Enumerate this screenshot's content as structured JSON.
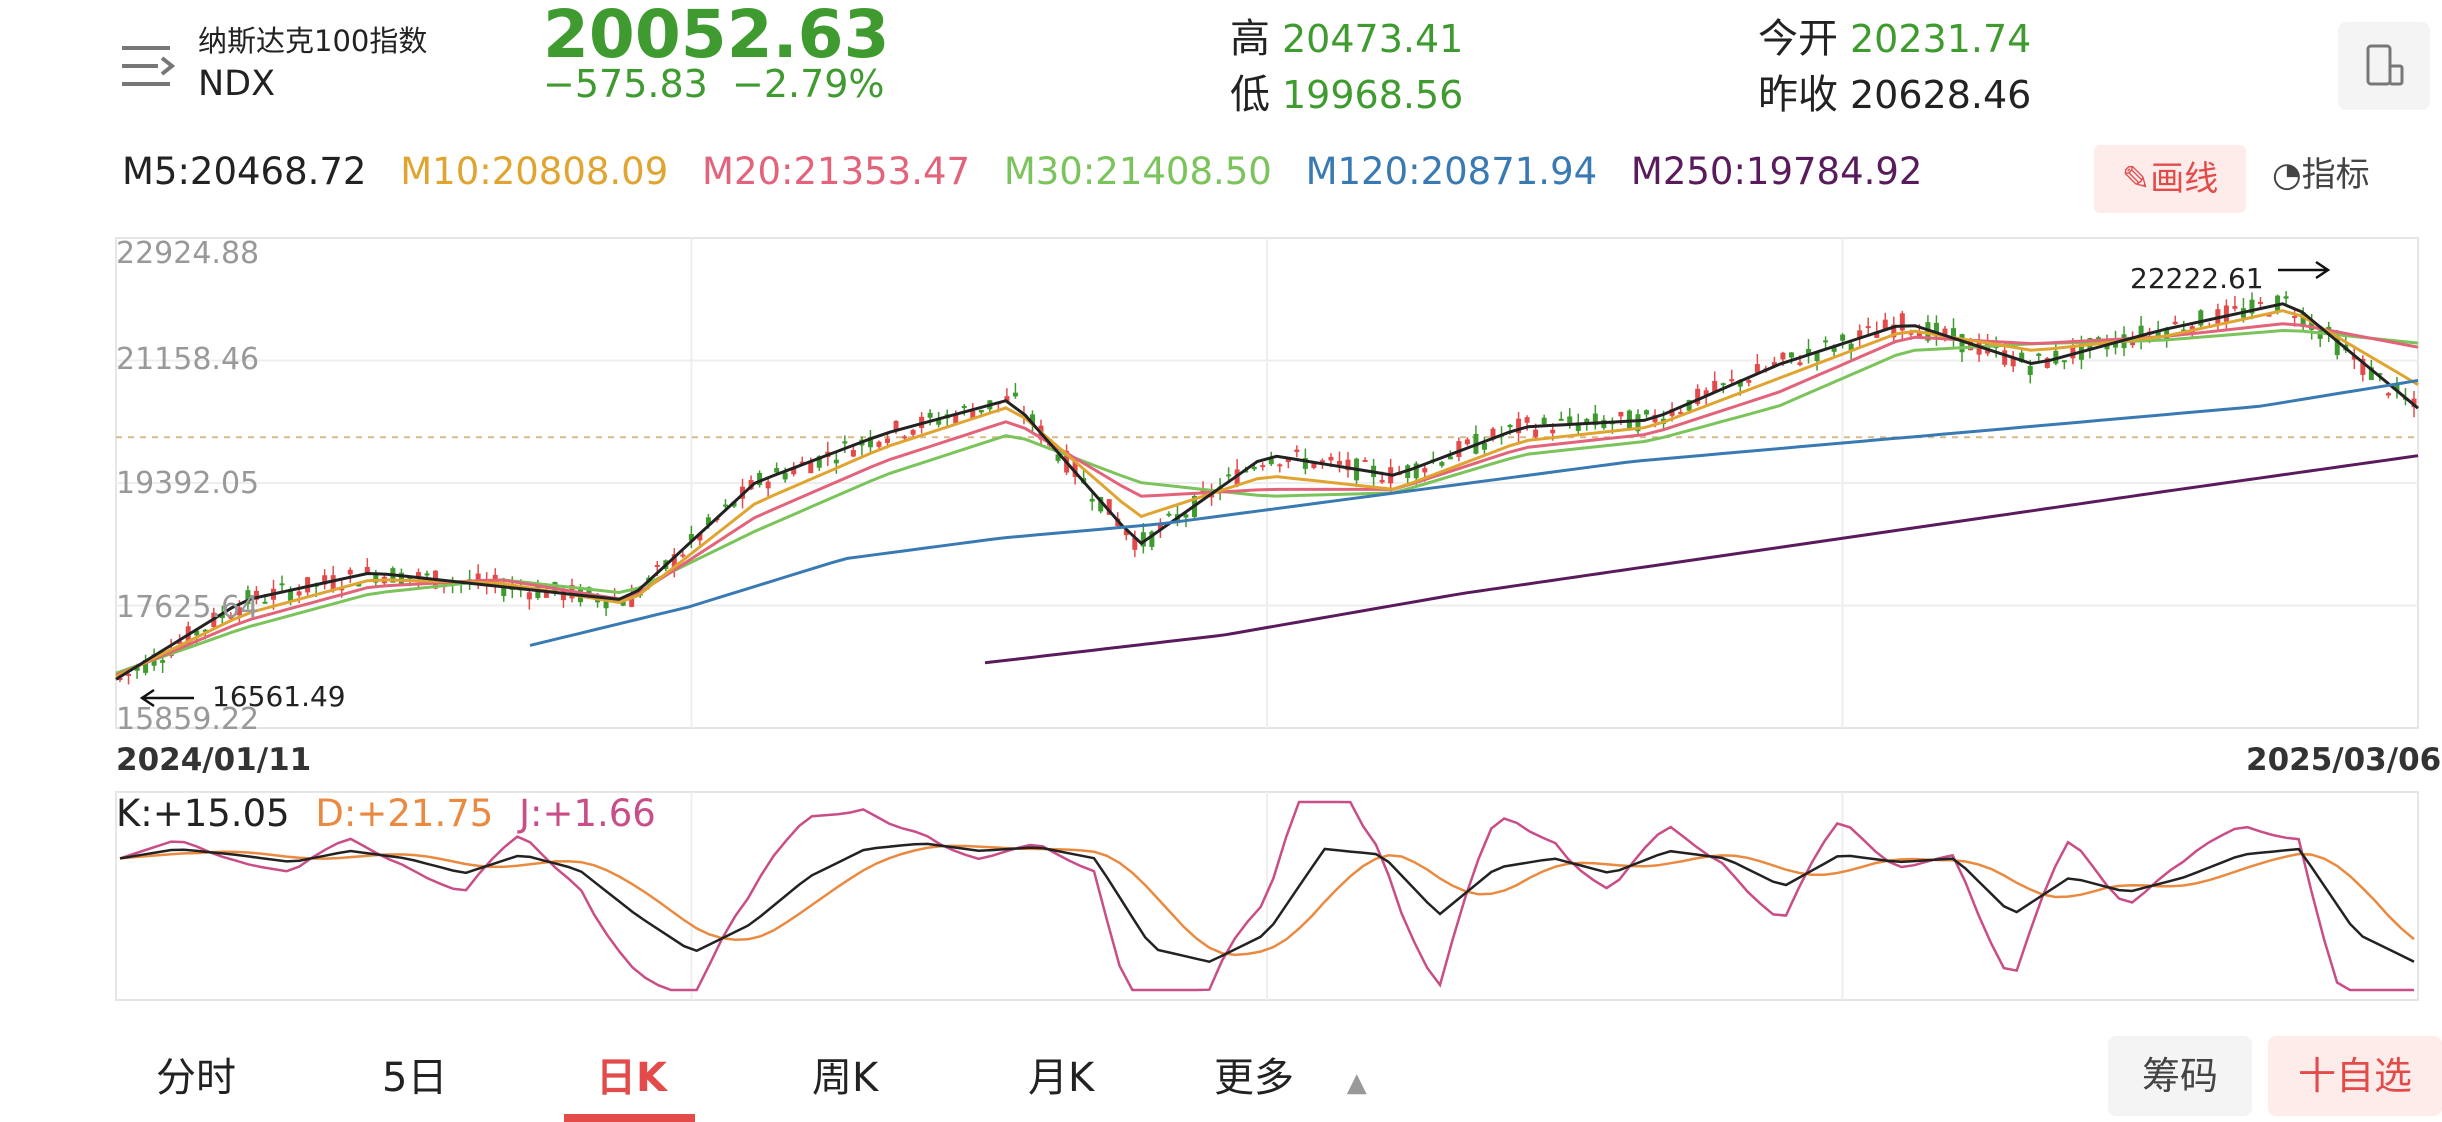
{
  "header": {
    "name": "纳斯达克100指数",
    "code": "NDX",
    "price": "20052.63",
    "change": "−575.83",
    "change_pct": "−2.79%",
    "high_label": "高",
    "high": "20473.41",
    "low_label": "低",
    "low": "19968.56",
    "open_label": "今开",
    "open": "20231.74",
    "prev_close_label": "昨收",
    "prev_close": "20628.46"
  },
  "ma": {
    "m5": "M5:20468.72",
    "m10": "M10:20808.09",
    "m20": "M20:21353.47",
    "m30": "M30:21408.50",
    "m120": "M120:20871.94",
    "m250": "M250:19784.92"
  },
  "toolbar": {
    "draw_label": "画线",
    "indicator_label": "指标"
  },
  "y_axis": [
    "22924.88",
    "21158.46",
    "19392.05",
    "17625.64",
    "15859.22"
  ],
  "dates": {
    "start": "2024/01/11",
    "end": "2025/03/06"
  },
  "annotations": {
    "high_mark": "22222.61",
    "low_mark": "16561.49"
  },
  "kdj": {
    "k": "K:+15.05",
    "d": "D:+21.75",
    "j": "J:+1.66"
  },
  "tabs": [
    "分时",
    "5日",
    "日K",
    "周K",
    "月K",
    "更多"
  ],
  "bottom": {
    "chips_label": "筹码",
    "add_label": "十自选"
  },
  "colors": {
    "up": "#e34b4b",
    "down": "#3f9b2f",
    "m5": "#222222",
    "m10": "#e0a431",
    "m20": "#e2637a",
    "m30": "#7bc35b",
    "m120": "#3a7ab3",
    "m250": "#5a1b5c",
    "k": "#222222",
    "d": "#ea8a40",
    "j": "#c94d86"
  },
  "chart_data": {
    "type": "candlestick",
    "y_range": [
      15859.22,
      22924.88
    ],
    "period": [
      "2024/01/11",
      "2025/03/06"
    ],
    "ma_keypoints": {
      "m5": [
        16561,
        17700,
        18100,
        17900,
        17700,
        19400,
        20100,
        20600,
        18500,
        19800,
        19500,
        20200,
        20300,
        21100,
        21700,
        21100,
        21600,
        22000,
        20470
      ],
      "m10": [
        16600,
        17500,
        18000,
        17950,
        17650,
        19100,
        19900,
        20500,
        18900,
        19500,
        19300,
        20000,
        20200,
        20900,
        21600,
        21300,
        21500,
        21900,
        20810
      ],
      "m20": [
        16620,
        17400,
        17900,
        18000,
        17700,
        18900,
        19700,
        20300,
        19200,
        19300,
        19300,
        19900,
        20100,
        20700,
        21500,
        21400,
        21500,
        21700,
        21350
      ],
      "m30": [
        16650,
        17300,
        17800,
        18000,
        17800,
        18700,
        19500,
        20100,
        19400,
        19200,
        19250,
        19800,
        20000,
        20500,
        21300,
        21400,
        21450,
        21600,
        21410
      ],
      "m120": [
        17050,
        17600,
        18300,
        18600,
        18800,
        19100,
        19400,
        19700,
        19900,
        20100,
        20300,
        20500,
        20870
      ],
      "m250": [
        16800,
        17200,
        17800,
        18300,
        18800,
        19300,
        19785
      ]
    },
    "kdj": {
      "k": 15.05,
      "d": 21.75,
      "j": 1.66
    }
  }
}
